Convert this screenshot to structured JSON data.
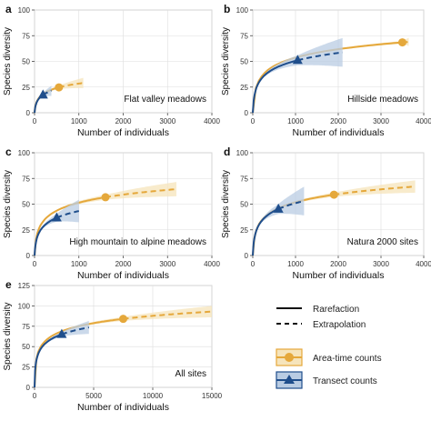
{
  "colors": {
    "area_time": "#E5A83B",
    "area_time_band": "#F6E4BB",
    "transect": "#1F4E8C",
    "transect_band": "#B9CCE3",
    "grid": "#DDDDDD",
    "axis_text": "#333333"
  },
  "chart_data": [
    {
      "panel_letter": "a",
      "type": "line",
      "subtitle": "Flat valley meadows",
      "xlabel": "Number of individuals",
      "ylabel": "Species diversity",
      "xlim": [
        0,
        4000
      ],
      "ylim": [
        0,
        100
      ],
      "x_ticks": [
        "0",
        "1000",
        "2000",
        "3000",
        "4000"
      ],
      "y_ticks": [
        "0",
        "25",
        "50",
        "75",
        "100"
      ],
      "grid": true,
      "series": [
        {
          "name": "Area-time counts",
          "a": 6.3,
          "k": 0.09,
          "observed_x": 550,
          "max_x": 1100,
          "band_max": 5
        },
        {
          "name": "Transect counts",
          "a": 6.0,
          "k": 0.09,
          "observed_x": 190,
          "max_x": 380,
          "band_max": 5
        }
      ]
    },
    {
      "panel_letter": "b",
      "type": "line",
      "subtitle": "Hillside meadows",
      "xlabel": "Number of individuals",
      "ylabel": "Species diversity",
      "xlim": [
        0,
        4000
      ],
      "ylim": [
        0,
        100
      ],
      "x_ticks": [
        "0",
        "1000",
        "2000",
        "3000",
        "4000"
      ],
      "y_ticks": [
        "0",
        "25",
        "50",
        "75",
        "100"
      ],
      "grid": true,
      "series": [
        {
          "name": "Area-time counts",
          "a": 11.9,
          "k": 0.09,
          "observed_x": 3500,
          "max_x": 3650,
          "band_max": 4
        },
        {
          "name": "Transect counts",
          "a": 11.2,
          "k": 0.09,
          "observed_x": 1050,
          "max_x": 2100,
          "band_max": 14
        }
      ]
    },
    {
      "panel_letter": "c",
      "type": "line",
      "subtitle": "High mountain to alpine meadows",
      "xlabel": "Number of individuals",
      "ylabel": "Species diversity",
      "xlim": [
        0,
        4000
      ],
      "ylim": [
        0,
        100
      ],
      "x_ticks": [
        "0",
        "1000",
        "2000",
        "3000",
        "4000"
      ],
      "y_ticks": [
        "0",
        "25",
        "50",
        "75",
        "100"
      ],
      "grid": true,
      "series": [
        {
          "name": "Area-time counts",
          "a": 11.4,
          "k": 0.09,
          "observed_x": 1600,
          "max_x": 3200,
          "band_max": 7
        },
        {
          "name": "Transect counts",
          "a": 9.6,
          "k": 0.09,
          "observed_x": 500,
          "max_x": 1000,
          "band_max": 11
        }
      ]
    },
    {
      "panel_letter": "d",
      "type": "line",
      "subtitle": "Natura 2000 sites",
      "xlabel": "Number of individuals",
      "ylabel": "Species diversity",
      "xlim": [
        0,
        4000
      ],
      "ylim": [
        0,
        100
      ],
      "x_ticks": [
        "0",
        "1000",
        "2000",
        "3000",
        "4000"
      ],
      "y_ticks": [
        "0",
        "25",
        "50",
        "75",
        "100"
      ],
      "grid": true,
      "series": [
        {
          "name": "Area-time counts",
          "a": 11.5,
          "k": 0.09,
          "observed_x": 1900,
          "max_x": 3800,
          "band_max": 6
        },
        {
          "name": "Transect counts",
          "a": 11.3,
          "k": 0.09,
          "observed_x": 600,
          "max_x": 1200,
          "band_max": 14
        }
      ]
    },
    {
      "panel_letter": "e",
      "type": "line",
      "subtitle": "All sites",
      "xlabel": "Number of individuals",
      "ylabel": "Species diversity",
      "xlim": [
        0,
        15000
      ],
      "ylim": [
        0,
        125
      ],
      "x_ticks": [
        "0",
        "5000",
        "10000",
        "15000"
      ],
      "y_ticks": [
        "0",
        "25",
        "50",
        "75",
        "100",
        "125"
      ],
      "grid": true,
      "series": [
        {
          "name": "Area-time counts",
          "a": 12.9,
          "k": 0.09,
          "observed_x": 7500,
          "max_x": 15000,
          "band_max": 7
        },
        {
          "name": "Transect counts",
          "a": 12.2,
          "k": 0.09,
          "observed_x": 2300,
          "max_x": 4600,
          "band_max": 8
        }
      ]
    }
  ],
  "legend": {
    "rarefaction_label": "Rarefaction",
    "extrapolation_label": "Extrapolation",
    "area_time_label": "Area-time counts",
    "transect_label": "Transect counts"
  }
}
